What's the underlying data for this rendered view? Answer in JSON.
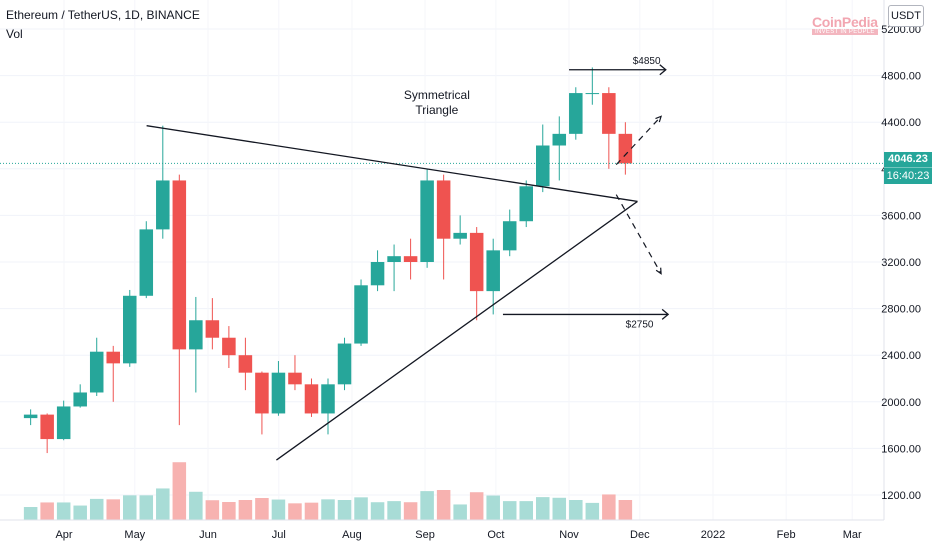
{
  "header": {
    "title": "Ethereum / TetherUS, 1D, BINANCE",
    "indicator": "Vol"
  },
  "axis": {
    "unit": "USDT",
    "y_ticks": [
      "1200.00",
      "1600.00",
      "2000.00",
      "2400.00",
      "2800.00",
      "3200.00",
      "3600.00",
      "4000.00",
      "4400.00",
      "4800.00",
      "5200.00"
    ],
    "x_ticks": [
      "Apr",
      "May",
      "Jun",
      "Jul",
      "Aug",
      "Sep",
      "Oct",
      "Nov",
      "Dec",
      "2022",
      "Feb",
      "Mar"
    ]
  },
  "price_label": {
    "value": "4046.23",
    "countdown": "16:40:23",
    "color": "#26a69a"
  },
  "logo": {
    "name": "CoinPedia",
    "tagline": "INVEST IN PEOPLE"
  },
  "annotations": {
    "pattern_label_1": "Symmetrical",
    "pattern_label_2": "Triangle",
    "target_high": "$4850",
    "target_low": "$2750"
  },
  "colors": {
    "up": "#26a69a",
    "down": "#ef5350",
    "vol_up": "#a8dcd6",
    "vol_down": "#f7b2b0",
    "current_line": "#26a69a"
  },
  "chart_data": {
    "type": "candlestick",
    "symbol": "ETH/USDT",
    "interval": "1D",
    "exchange": "BINANCE",
    "current_price": 4046.23,
    "ylim": [
      1000,
      5300
    ],
    "series": [
      {
        "name": "Ethereum / TetherUS",
        "date": "2021-03-15",
        "open": 1860,
        "high": 1935,
        "low": 1800,
        "close": 1890
      },
      {
        "date": "2021-03-22",
        "open": 1890,
        "high": 1900,
        "low": 1560,
        "close": 1680
      },
      {
        "date": "2021-03-29",
        "open": 1680,
        "high": 2010,
        "low": 1670,
        "close": 1960
      },
      {
        "date": "2021-04-05",
        "open": 1960,
        "high": 2150,
        "low": 1950,
        "close": 2080
      },
      {
        "date": "2021-04-12",
        "open": 2080,
        "high": 2550,
        "low": 2050,
        "close": 2430
      },
      {
        "date": "2021-04-19",
        "open": 2430,
        "high": 2480,
        "low": 2000,
        "close": 2330
      },
      {
        "date": "2021-04-26",
        "open": 2330,
        "high": 2960,
        "low": 2300,
        "close": 2910
      },
      {
        "date": "2021-05-03",
        "open": 2910,
        "high": 3550,
        "low": 2890,
        "close": 3480
      },
      {
        "date": "2021-05-10",
        "open": 3480,
        "high": 4370,
        "low": 3400,
        "close": 3900
      },
      {
        "date": "2021-05-17",
        "open": 3900,
        "high": 3950,
        "low": 1800,
        "close": 2450
      },
      {
        "date": "2021-05-24",
        "open": 2450,
        "high": 2900,
        "low": 2080,
        "close": 2700
      },
      {
        "date": "2021-05-31",
        "open": 2700,
        "high": 2890,
        "low": 2450,
        "close": 2550
      },
      {
        "date": "2021-06-07",
        "open": 2550,
        "high": 2650,
        "low": 2290,
        "close": 2400
      },
      {
        "date": "2021-06-14",
        "open": 2400,
        "high": 2550,
        "low": 2100,
        "close": 2250
      },
      {
        "date": "2021-06-21",
        "open": 2250,
        "high": 2260,
        "low": 1720,
        "close": 1900
      },
      {
        "date": "2021-06-28",
        "open": 1900,
        "high": 2350,
        "low": 1880,
        "close": 2250
      },
      {
        "date": "2021-07-05",
        "open": 2250,
        "high": 2400,
        "low": 2100,
        "close": 2150
      },
      {
        "date": "2021-07-12",
        "open": 2150,
        "high": 2200,
        "low": 1870,
        "close": 1900
      },
      {
        "date": "2021-07-19",
        "open": 1900,
        "high": 2200,
        "low": 1720,
        "close": 2150
      },
      {
        "date": "2021-07-26",
        "open": 2150,
        "high": 2550,
        "low": 2100,
        "close": 2500
      },
      {
        "date": "2021-08-02",
        "open": 2500,
        "high": 3050,
        "low": 2480,
        "close": 3000
      },
      {
        "date": "2021-08-09",
        "open": 3000,
        "high": 3300,
        "low": 2950,
        "close": 3200
      },
      {
        "date": "2021-08-16",
        "open": 3200,
        "high": 3350,
        "low": 2950,
        "close": 3250
      },
      {
        "date": "2021-08-23",
        "open": 3250,
        "high": 3400,
        "low": 3050,
        "close": 3200
      },
      {
        "date": "2021-08-30",
        "open": 3200,
        "high": 4000,
        "low": 3150,
        "close": 3900
      },
      {
        "date": "2021-09-06",
        "open": 3900,
        "high": 3950,
        "low": 3050,
        "close": 3400
      },
      {
        "date": "2021-09-13",
        "open": 3400,
        "high": 3600,
        "low": 3350,
        "close": 3450
      },
      {
        "date": "2021-09-20",
        "open": 3450,
        "high": 3500,
        "low": 2700,
        "close": 2950
      },
      {
        "date": "2021-09-27",
        "open": 2950,
        "high": 3400,
        "low": 2750,
        "close": 3300
      },
      {
        "date": "2021-10-04",
        "open": 3300,
        "high": 3650,
        "low": 3250,
        "close": 3550
      },
      {
        "date": "2021-10-11",
        "open": 3550,
        "high": 3900,
        "low": 3500,
        "close": 3850
      },
      {
        "date": "2021-10-18",
        "open": 3850,
        "high": 4380,
        "low": 3800,
        "close": 4200
      },
      {
        "date": "2021-10-25",
        "open": 4200,
        "high": 4450,
        "low": 3900,
        "close": 4300
      },
      {
        "date": "2021-11-01",
        "open": 4300,
        "high": 4700,
        "low": 4250,
        "close": 4650
      },
      {
        "date": "2021-11-08",
        "open": 4650,
        "high": 4870,
        "low": 4550,
        "close": 4650
      },
      {
        "date": "2021-11-15",
        "open": 4650,
        "high": 4700,
        "low": 4000,
        "close": 4300
      },
      {
        "date": "2021-11-22",
        "open": 4300,
        "high": 4400,
        "low": 3950,
        "close": 4046.23
      }
    ],
    "drawings": {
      "triangle_upper_line": {
        "from": {
          "date": "2021-05-06",
          "price": 4370
        },
        "to": {
          "date": "2021-11-30",
          "price": 3720
        }
      },
      "triangle_lower_line": {
        "from": {
          "date": "2021-06-30",
          "price": 1500
        },
        "to": {
          "date": "2021-11-30",
          "price": 3720
        }
      },
      "target_high_price": 4850,
      "target_low_price": 2750
    }
  }
}
